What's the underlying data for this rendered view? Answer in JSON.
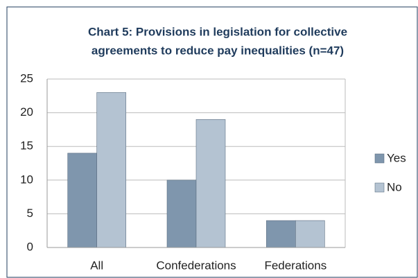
{
  "chart_data": {
    "type": "bar",
    "title": [
      "Chart 5: Provisions in legislation for collective",
      "agreements to reduce pay inequalities (n=47)"
    ],
    "categories": [
      "All",
      "Confederations",
      "Federations"
    ],
    "series": [
      {
        "name": "Yes",
        "color": "#7f96ad",
        "values": [
          14,
          10,
          4
        ]
      },
      {
        "name": "No",
        "color": "#b4c3d2",
        "values": [
          23,
          19,
          4
        ]
      }
    ],
    "ylim": [
      0,
      25
    ],
    "yticks": [
      0,
      5,
      10,
      15,
      20,
      25
    ],
    "grid": true,
    "legend": "right"
  }
}
